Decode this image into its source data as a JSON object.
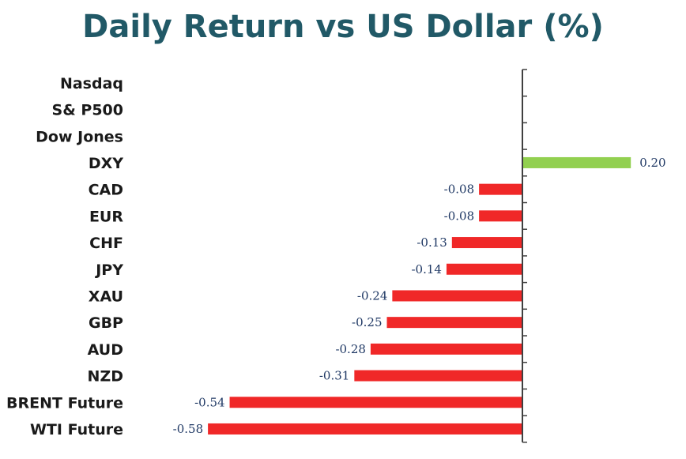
{
  "colors": {
    "title": "#215967",
    "positive": "#92D050",
    "negative": "#F02828",
    "value_label": "#1F3864",
    "axis": "#404040"
  },
  "chart_data": {
    "type": "bar",
    "orientation": "horizontal",
    "title": "Daily Return vs US Dollar (%)",
    "xlabel": "",
    "ylabel": "",
    "categories": [
      "Nasdaq",
      "S& P500",
      "Dow Jones",
      "DXY",
      "CAD",
      "EUR",
      "CHF",
      "JPY",
      "XAU",
      "GBP",
      "AUD",
      "NZD",
      "BRENT Future",
      "WTI Future"
    ],
    "values": [
      null,
      null,
      null,
      0.2,
      -0.08,
      -0.08,
      -0.13,
      -0.14,
      -0.24,
      -0.25,
      -0.28,
      -0.31,
      -0.54,
      -0.58
    ],
    "value_labels": [
      "",
      "",
      "",
      "0.20",
      "-0.08",
      "-0.08",
      "-0.13",
      "-0.14",
      "-0.24",
      "-0.25",
      "-0.28",
      "-0.31",
      "-0.54",
      "-0.58"
    ],
    "xlim": [
      -0.58,
      0.2
    ],
    "grid": false,
    "legend": "none"
  }
}
